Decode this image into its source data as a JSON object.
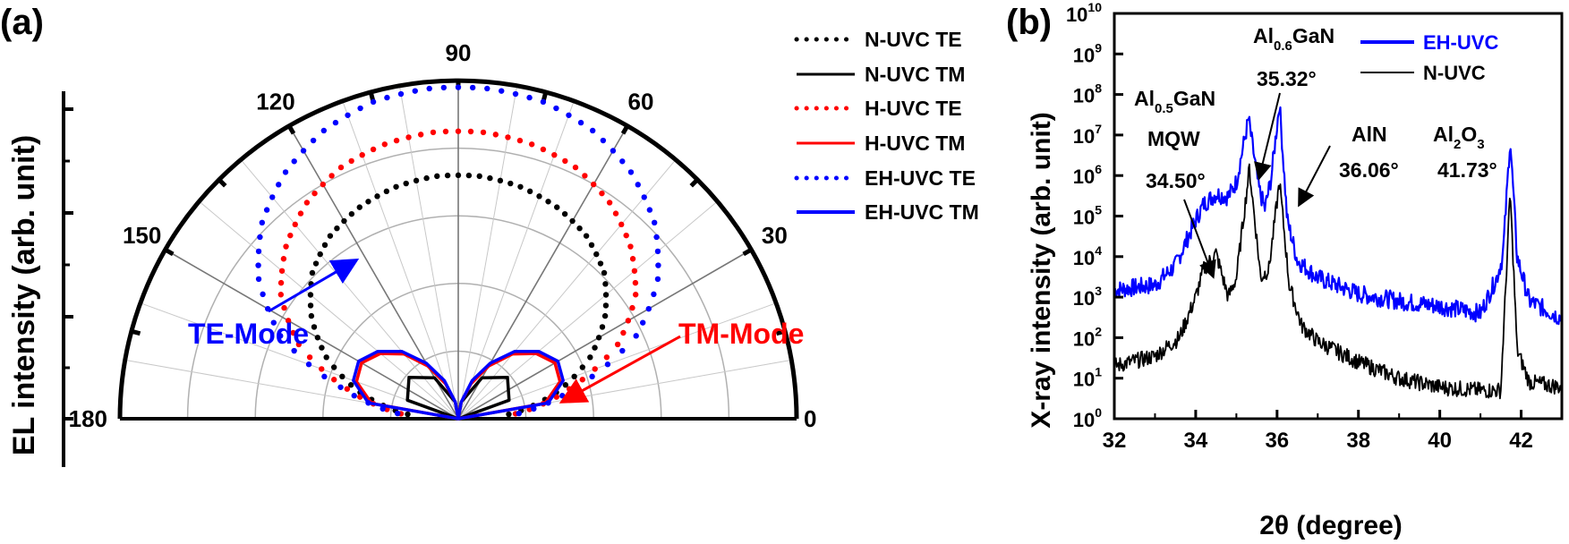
{
  "chart_data": [
    {
      "panel_label": "(a)",
      "type": "polar",
      "ylabel": "EL intensity (arb. unit)",
      "angle_ticks": [
        "0",
        "30",
        "60",
        "90",
        "120",
        "150",
        "180"
      ],
      "r_range": [
        0,
        1
      ],
      "grid": true,
      "legend_position": "top-right",
      "series": [
        {
          "name": "N-UVC TE",
          "style": "dotted",
          "color": "#000000",
          "angles": [
            5,
            15,
            25,
            35,
            45,
            55,
            65,
            75,
            85,
            95,
            105,
            115,
            125,
            135,
            145,
            155,
            165,
            175
          ],
          "r": [
            0.15,
            0.3,
            0.43,
            0.53,
            0.61,
            0.66,
            0.69,
            0.71,
            0.72,
            0.72,
            0.71,
            0.69,
            0.66,
            0.61,
            0.53,
            0.43,
            0.3,
            0.15
          ]
        },
        {
          "name": "N-UVC TM",
          "style": "solid",
          "color": "#000000",
          "angles": [
            0,
            20,
            40,
            60,
            80,
            90,
            100,
            120,
            140,
            160,
            180
          ],
          "r": [
            0.0,
            0.16,
            0.19,
            0.14,
            0.05,
            0.0,
            0.05,
            0.14,
            0.19,
            0.16,
            0.0
          ]
        },
        {
          "name": "H-UVC TE",
          "style": "dotted",
          "color": "#ff0000",
          "angles": [
            5,
            15,
            25,
            35,
            45,
            55,
            65,
            75,
            85,
            95,
            105,
            115,
            125,
            135,
            145,
            155,
            165,
            175
          ],
          "r": [
            0.17,
            0.34,
            0.52,
            0.64,
            0.72,
            0.78,
            0.82,
            0.84,
            0.85,
            0.85,
            0.84,
            0.82,
            0.78,
            0.72,
            0.64,
            0.52,
            0.34,
            0.17
          ]
        },
        {
          "name": "H-UVC TM",
          "style": "solid",
          "color": "#ff0000",
          "angles": [
            0,
            10,
            20,
            30,
            40,
            50,
            60,
            70,
            80,
            90,
            100,
            110,
            120,
            130,
            140,
            150,
            160,
            170,
            180
          ],
          "r": [
            0.0,
            0.26,
            0.32,
            0.33,
            0.3,
            0.25,
            0.18,
            0.11,
            0.05,
            0.0,
            0.05,
            0.11,
            0.18,
            0.25,
            0.3,
            0.33,
            0.32,
            0.26,
            0.0
          ]
        },
        {
          "name": "EH-UVC TE",
          "style": "dotted",
          "color": "#0000ff",
          "angles": [
            5,
            15,
            25,
            35,
            45,
            55,
            65,
            75,
            85,
            95,
            105,
            115,
            125,
            135,
            145,
            155,
            165,
            175
          ],
          "r": [
            0.18,
            0.36,
            0.58,
            0.72,
            0.82,
            0.89,
            0.94,
            0.97,
            0.98,
            0.98,
            0.97,
            0.94,
            0.89,
            0.82,
            0.72,
            0.58,
            0.36,
            0.18
          ]
        },
        {
          "name": "EH-UVC TM",
          "style": "solid",
          "color": "#0000ff",
          "angles": [
            0,
            10,
            20,
            30,
            40,
            50,
            60,
            70,
            80,
            90,
            100,
            110,
            120,
            130,
            140,
            150,
            160,
            170,
            180
          ],
          "r": [
            0.0,
            0.27,
            0.33,
            0.34,
            0.31,
            0.26,
            0.19,
            0.12,
            0.05,
            0.0,
            0.05,
            0.12,
            0.19,
            0.26,
            0.31,
            0.34,
            0.33,
            0.27,
            0.0
          ]
        }
      ],
      "annotations": [
        {
          "text": "TE-Mode",
          "color": "#0000ff"
        },
        {
          "text": "TM-Mode",
          "color": "#ff0000"
        }
      ]
    },
    {
      "panel_label": "(b)",
      "type": "line",
      "xlabel": "2θ (degree)",
      "ylabel": "X-ray intensity (arb. unit)",
      "y_scale": "log",
      "xlim": [
        32,
        43
      ],
      "ylim": [
        1,
        10000000000
      ],
      "x_ticks": [
        "32",
        "34",
        "36",
        "38",
        "40",
        "42"
      ],
      "y_tick_base": "10",
      "y_tick_exponents": [
        "0",
        "1",
        "2",
        "3",
        "4",
        "5",
        "6",
        "7",
        "8",
        "9",
        "10"
      ],
      "legend_position": "top-right",
      "series": [
        {
          "name": "EH-UVC",
          "color": "#0000ff",
          "x": [
            32,
            33,
            33.5,
            34,
            34.2,
            34.5,
            34.8,
            35.0,
            35.3,
            35.55,
            35.7,
            35.85,
            36.06,
            36.25,
            36.5,
            37,
            38,
            39,
            40,
            41,
            41.4,
            41.55,
            41.73,
            41.9,
            42.2,
            43
          ],
          "y": [
            1500,
            2000,
            6000,
            80000,
            200000,
            350000,
            300000,
            700000,
            25000000,
            500000,
            150000,
            800000,
            60000000,
            80000,
            8000,
            3000,
            1200,
            800,
            600,
            400,
            3000,
            10000,
            8000000,
            10000,
            800,
            300
          ]
        },
        {
          "name": "N-UVC",
          "color": "#000000",
          "x": [
            32,
            33,
            33.6,
            34.0,
            34.2,
            34.5,
            34.8,
            35.0,
            35.32,
            35.6,
            35.8,
            36.06,
            36.3,
            36.6,
            37,
            38,
            39,
            40,
            41,
            41.5,
            41.73,
            41.9,
            42.2,
            43
          ],
          "y": [
            20,
            35,
            100,
            1000,
            5000,
            12000,
            1000,
            3000,
            1500000,
            3000,
            5000,
            700000,
            2000,
            200,
            80,
            25,
            10,
            6,
            5,
            5,
            400000,
            50,
            8,
            6
          ]
        }
      ],
      "annotations": [
        {
          "text_main": "Al",
          "text_sub": "0.5",
          "text_tail": "GaN",
          "line2": "MQW",
          "value": "34.50°"
        },
        {
          "text_main": "Al",
          "text_sub": "0.6",
          "text_tail": "GaN",
          "value": "35.32°"
        },
        {
          "text_main": "AlN",
          "value": "36.06°"
        },
        {
          "text_main": "Al",
          "text_sub": "2",
          "text_tail": "O",
          "text_sub2": "3",
          "value": "41.73°"
        }
      ]
    }
  ]
}
